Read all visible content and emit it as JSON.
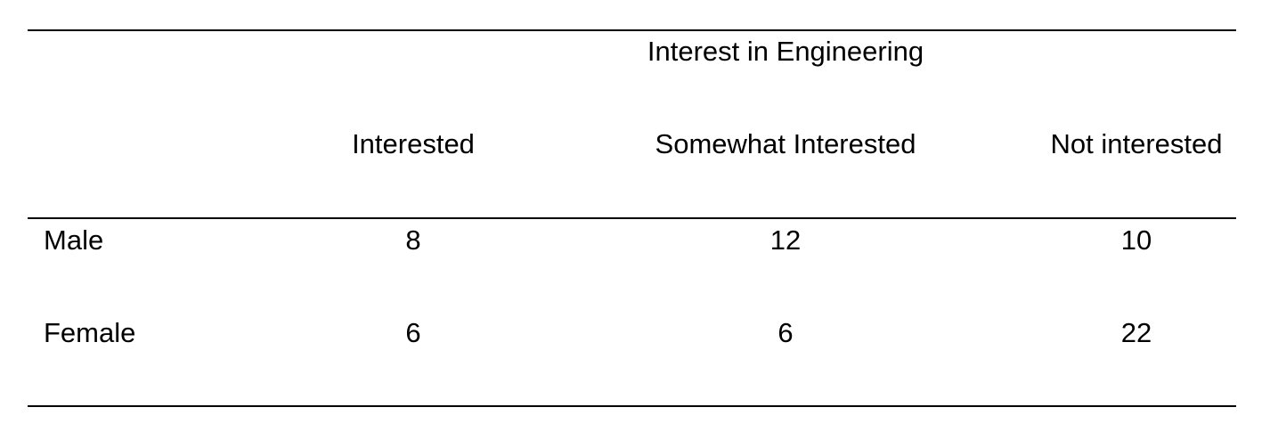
{
  "table": {
    "spanner": "Interest in Engineering",
    "columns": [
      "Interested",
      "Somewhat Interested",
      "Not interested"
    ],
    "rows": [
      {
        "label": "Male",
        "values": [
          "8",
          "12",
          "10"
        ]
      },
      {
        "label": "Female",
        "values": [
          "6",
          "6",
          "22"
        ]
      }
    ]
  }
}
